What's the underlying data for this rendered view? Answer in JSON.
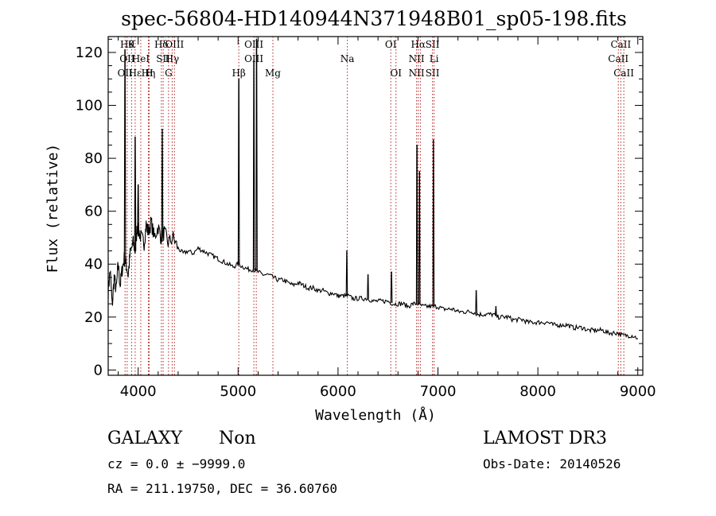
{
  "chart_data": {
    "type": "line",
    "title": "spec-56804-HD140944N371948B01_sp05-198.fits",
    "xlabel": "Wavelength (Å)",
    "ylabel": "Flux (relative)",
    "xlim": [
      3700,
      9050
    ],
    "ylim": [
      -2,
      126
    ],
    "x_ticks": [
      4000,
      5000,
      6000,
      7000,
      8000,
      9000
    ],
    "x_tick_labels": [
      "4000",
      "5000",
      "6000",
      "7000",
      "8000",
      "9000"
    ],
    "y_ticks": [
      0,
      20,
      40,
      60,
      80,
      100,
      120
    ],
    "y_tick_labels": [
      "0",
      "20",
      "40",
      "60",
      "80",
      "100",
      "120"
    ],
    "line_color": "#000000",
    "marker_color": "#b22222",
    "series": [
      {
        "x": [
          3700,
          3720,
          3740,
          3760,
          3780,
          3800,
          3820,
          3840,
          3860,
          3880,
          3900,
          3920,
          3950,
          3970,
          3990,
          4010,
          4030,
          4060,
          4080,
          4100,
          4130,
          4160,
          4200,
          4230,
          4260,
          4300,
          4350,
          4400,
          4450,
          4500,
          4550,
          4600,
          4650,
          4700,
          4750,
          4800,
          4850,
          4900,
          4950,
          5000,
          5050,
          5100,
          5150,
          5200,
          5250,
          5300,
          5350,
          5400,
          5450,
          5500,
          5550,
          5600,
          5650,
          5700,
          5750,
          5800,
          5850,
          5900,
          5950,
          6000,
          6050,
          6100,
          6150,
          6200,
          6250,
          6300,
          6350,
          6400,
          6450,
          6500,
          6550,
          6600,
          6650,
          6700,
          6750,
          6800,
          6850,
          6900,
          6950,
          7000,
          7050,
          7100,
          7150,
          7200,
          7250,
          7300,
          7350,
          7400,
          7450,
          7500,
          7550,
          7600,
          7650,
          7700,
          7750,
          7800,
          7850,
          7900,
          7950,
          8000,
          8050,
          8100,
          8150,
          8200,
          8250,
          8300,
          8350,
          8400,
          8450,
          8500,
          8550,
          8600,
          8650,
          8700,
          8750,
          8800,
          8850,
          8900,
          8950,
          9000
        ],
        "y": [
          30,
          38,
          24,
          35,
          30,
          40,
          32,
          38,
          42,
          40,
          36,
          44,
          48,
          45,
          54,
          52,
          50,
          48,
          55,
          52,
          56,
          50,
          54,
          50,
          52,
          48,
          50,
          46,
          44,
          45,
          44,
          46,
          45,
          44,
          43,
          42,
          41,
          40,
          39,
          40,
          39,
          38,
          38,
          37,
          36,
          36,
          35,
          34,
          34,
          33,
          32,
          33,
          32,
          31,
          31,
          30,
          30,
          29,
          29,
          28,
          28,
          28,
          27,
          27,
          27,
          27,
          26,
          26,
          26,
          26,
          25,
          25,
          25,
          24,
          25,
          25,
          24,
          24,
          24,
          24,
          23,
          23,
          23,
          22,
          22,
          22,
          22,
          21,
          21,
          21,
          21,
          20,
          20,
          20,
          19,
          19,
          19,
          18,
          18,
          18,
          18,
          18,
          17,
          17,
          17,
          17,
          16,
          16,
          16,
          15,
          15,
          15,
          15,
          14,
          14,
          14,
          13,
          13,
          13,
          12
        ]
      }
    ],
    "emission_peaks": [
      {
        "x": 3868,
        "y": 121
      },
      {
        "x": 3970,
        "y": 88
      },
      {
        "x": 4000,
        "y": 70
      },
      {
        "x": 4241,
        "y": 91
      },
      {
        "x": 5007,
        "y": 110
      },
      {
        "x": 5158,
        "y": 117
      },
      {
        "x": 5185,
        "y": 125
      },
      {
        "x": 6088,
        "y": 45
      },
      {
        "x": 6300,
        "y": 36
      },
      {
        "x": 6535,
        "y": 37
      },
      {
        "x": 6790,
        "y": 85
      },
      {
        "x": 6815,
        "y": 75
      },
      {
        "x": 6955,
        "y": 87
      },
      {
        "x": 7383,
        "y": 30
      },
      {
        "x": 7580,
        "y": 24
      }
    ],
    "line_markers": [
      {
        "x": 3869,
        "labels": [
          {
            "text": "OII",
            "row": 2
          }
        ]
      },
      {
        "x": 3890,
        "labels": [
          {
            "text": "Hθ",
            "row": 0
          },
          {
            "text": "OII",
            "row": 1
          }
        ]
      },
      {
        "x": 3970,
        "labels": [
          {
            "text": "Hε",
            "row": 2
          }
        ]
      },
      {
        "x": 4026,
        "labels": [
          {
            "text": "HeI",
            "row": 1
          }
        ]
      },
      {
        "x": 4102,
        "labels": [
          {
            "text": "Hη",
            "row": 2
          }
        ]
      },
      {
        "x": 3934,
        "labels": [
          {
            "text": "K",
            "row": 0
          }
        ]
      },
      {
        "x": 4110,
        "labels": [
          {
            "text": "H",
            "row": 2
          }
        ]
      },
      {
        "x": 4232,
        "labels": [
          {
            "text": "Hδ",
            "row": 0
          }
        ]
      },
      {
        "x": 4250,
        "labels": [
          {
            "text": "SII",
            "row": 1
          }
        ]
      },
      {
        "x": 4340,
        "labels": [
          {
            "text": "Hγ",
            "row": 1
          }
        ]
      },
      {
        "x": 4304,
        "labels": [
          {
            "text": "G",
            "row": 2
          }
        ]
      },
      {
        "x": 4363,
        "labels": [
          {
            "text": "OIII",
            "row": 0
          }
        ]
      },
      {
        "x": 5007,
        "labels": [
          {
            "text": "Hβ",
            "row": 2
          }
        ]
      },
      {
        "x": 5158,
        "labels": [
          {
            "text": "OIII",
            "row": 0
          },
          {
            "text": "OIII",
            "row": 1
          }
        ]
      },
      {
        "x": 5182,
        "labels": []
      },
      {
        "x": 5348,
        "labels": [
          {
            "text": "Mg",
            "row": 2
          }
        ]
      },
      {
        "x": 6093,
        "labels": [
          {
            "text": "Na",
            "row": 1
          }
        ]
      },
      {
        "x": 6528,
        "labels": [
          {
            "text": "OI",
            "row": 0
          }
        ]
      },
      {
        "x": 6580,
        "labels": [
          {
            "text": "OI",
            "row": 2
          }
        ]
      },
      {
        "x": 6786,
        "labels": [
          {
            "text": "NII",
            "row": 1
          },
          {
            "text": "NII",
            "row": 2
          }
        ]
      },
      {
        "x": 6803,
        "labels": [
          {
            "text": "Hα",
            "row": 0
          }
        ]
      },
      {
        "x": 6824,
        "labels": []
      },
      {
        "x": 6945,
        "labels": [
          {
            "text": "SII",
            "row": 0
          },
          {
            "text": "SII",
            "row": 2
          }
        ]
      },
      {
        "x": 6961,
        "labels": [
          {
            "text": "Li",
            "row": 1
          }
        ]
      },
      {
        "x": 8805,
        "labels": [
          {
            "text": "CaII",
            "row": 1
          }
        ]
      },
      {
        "x": 8830,
        "labels": [
          {
            "text": "CaII",
            "row": 0
          }
        ]
      },
      {
        "x": 8860,
        "labels": [
          {
            "text": "CaII",
            "row": 2
          }
        ]
      }
    ]
  },
  "footer": {
    "class_label": "GALAXY",
    "subclass_label": "Non",
    "survey_label": "LAMOST DR3",
    "cz_line": "cz = 0.0 ± −9999.0",
    "obs_date_line": "Obs-Date: 20140526",
    "coords_line": "RA = 211.19750, DEC =  36.60760"
  }
}
